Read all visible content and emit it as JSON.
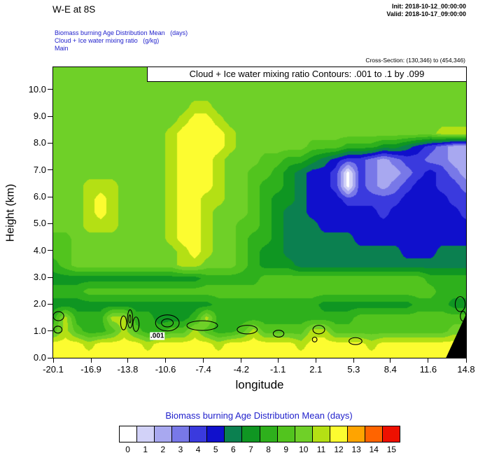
{
  "header": {
    "title": "W-E at 8S",
    "init_label": "Init: 2018-10-12_00:00:00",
    "valid_label": "Valid: 2018-10-17_09:00:00",
    "field_lines": [
      "Biomass burning Age Distribution Mean   (days)",
      "Cloud + Ice water mixing ratio   (g/kg)",
      "Main"
    ],
    "cross_section": "Cross-Section: (130,346) to (454,346)"
  },
  "plot": {
    "contour_title": "Cloud + Ice water mixing ratio Contours: .001 to .1 by .099",
    "xlabel": "longitude",
    "ylabel": "Height (km)",
    "x_ticks": [
      -20.1,
      -16.9,
      -13.8,
      -10.6,
      -7.4,
      -4.2,
      -1.1,
      2.1,
      5.3,
      8.4,
      11.6,
      14.8
    ],
    "y_ticks": [
      "0.0",
      "1.0",
      "2.0",
      "3.0",
      "4.0",
      "5.0",
      "6.0",
      "7.0",
      "8.0",
      "9.0",
      "10.0"
    ]
  },
  "colorbar": {
    "title": "Biomass burning Age Distribution Mean  (days)",
    "labels": [
      "0",
      "1",
      "2",
      "3",
      "4",
      "5",
      "6",
      "7",
      "8",
      "9",
      "10",
      "11",
      "12",
      "13",
      "14",
      "15"
    ],
    "colors": [
      "#ffffff",
      "#d2d2f8",
      "#a8a8f0",
      "#7878e8",
      "#3a3ade",
      "#1010cc",
      "#0b8050",
      "#0f9622",
      "#2eb01c",
      "#52c41e",
      "#6fd028",
      "#b4e014",
      "#fcfc30",
      "#ffa400",
      "#ff6400",
      "#ee1000"
    ]
  },
  "chart_data": {
    "type": "heatmap",
    "title": "Biomass burning Age Distribution Mean (days), W-E cross-section at 8S",
    "xlabel": "longitude",
    "ylabel": "Height (km)",
    "value_units": "days",
    "x_range": [
      -20.1,
      14.8
    ],
    "y_range": [
      0,
      10.83
    ],
    "x_ticks": [
      -20.1,
      -16.9,
      -13.8,
      -10.6,
      -7.4,
      -4.2,
      -1.1,
      2.1,
      5.3,
      8.4,
      11.6,
      14.8
    ],
    "y_ticks": [
      0,
      1,
      2,
      3,
      4,
      5,
      6,
      7,
      8,
      9,
      10
    ],
    "levels": [
      0,
      1,
      2,
      3,
      4,
      5,
      6,
      7,
      8,
      9,
      10,
      11,
      12,
      13,
      14,
      15
    ],
    "palette": [
      "#ffffff",
      "#d2d2f8",
      "#a8a8f0",
      "#7878e8",
      "#3a3ade",
      "#1010cc",
      "#0b8050",
      "#0f9622",
      "#2eb01c",
      "#52c41e",
      "#6fd028",
      "#b4e014",
      "#fcfc30",
      "#ffa400",
      "#ff6400",
      "#ee1000"
    ],
    "grid": {
      "note": "age in days; rows run top (10.83 km) to bottom (0 km), cols west (-20.1) to east (14.8)",
      "values": [
        [
          10,
          10,
          10,
          10,
          10,
          10,
          10,
          10,
          10,
          10,
          10,
          10,
          10,
          10,
          10,
          10,
          10,
          10,
          10,
          10,
          10,
          10,
          10,
          10,
          10,
          10,
          10,
          10,
          10,
          10,
          10,
          10,
          10,
          10,
          10,
          10
        ],
        [
          10,
          10,
          10,
          10,
          10,
          10,
          10,
          10,
          10,
          10,
          10,
          10,
          10,
          10,
          10,
          10,
          10,
          10,
          10,
          10,
          10,
          10,
          10,
          10,
          10,
          10,
          10,
          10,
          10,
          10,
          10,
          10,
          10,
          10,
          10,
          10
        ],
        [
          10,
          10,
          10,
          10,
          10,
          10,
          10,
          10,
          10,
          10,
          10,
          10,
          10,
          10,
          10,
          10,
          10,
          10,
          10,
          10,
          10,
          10,
          10,
          10,
          10,
          10,
          10,
          10,
          10,
          10,
          10,
          10,
          10,
          10,
          10,
          10
        ],
        [
          10,
          10,
          10,
          10,
          10,
          10,
          10,
          10,
          10,
          10,
          10,
          10,
          11,
          11,
          10,
          10,
          10,
          10,
          10,
          10,
          10,
          10,
          10,
          10,
          10,
          10,
          10,
          10,
          10,
          10,
          10,
          10,
          10,
          10,
          10,
          10
        ],
        [
          10,
          10,
          10,
          10,
          10,
          10,
          10,
          10,
          10,
          10,
          10,
          11,
          12,
          12,
          11,
          10,
          10,
          10,
          10,
          10,
          10,
          10,
          10,
          10,
          10,
          10,
          10,
          10,
          10,
          10,
          10,
          10,
          10,
          10,
          10,
          10
        ],
        [
          10,
          10,
          10,
          10,
          10,
          10,
          10,
          10,
          10,
          10,
          11,
          12,
          12,
          12,
          12,
          11,
          10,
          10,
          10,
          10,
          10,
          10,
          10,
          10,
          10,
          10,
          10,
          10,
          10,
          10,
          10,
          10,
          10,
          11,
          11,
          11
        ],
        [
          10,
          10,
          10,
          10,
          10,
          10,
          10,
          10,
          10,
          10,
          11,
          12,
          12,
          12,
          12,
          11,
          10,
          10,
          10,
          10,
          10,
          10,
          9,
          9,
          9,
          8,
          8,
          8,
          7,
          7,
          6,
          5,
          4,
          3,
          2,
          2
        ],
        [
          10,
          10,
          10,
          10,
          10,
          10,
          10,
          10,
          10,
          10,
          11,
          12,
          12,
          12,
          11,
          10,
          10,
          10,
          9,
          9,
          8,
          8,
          7,
          6,
          5,
          4,
          4,
          3,
          2,
          3,
          4,
          4,
          3,
          3,
          2,
          2
        ],
        [
          10,
          10,
          10,
          10,
          10,
          10,
          10,
          10,
          10,
          10,
          11,
          12,
          12,
          12,
          11,
          10,
          10,
          9,
          9,
          8,
          7,
          6,
          5,
          5,
          4,
          0,
          4,
          3,
          2,
          2,
          3,
          4,
          5,
          4,
          3,
          2
        ],
        [
          10,
          10,
          10,
          11,
          11,
          11,
          10,
          10,
          10,
          10,
          11,
          12,
          12,
          12,
          11,
          10,
          10,
          9,
          8,
          8,
          7,
          6,
          5,
          5,
          4,
          0,
          4,
          3,
          2,
          3,
          4,
          5,
          5,
          4,
          4,
          3
        ],
        [
          10,
          10,
          10,
          11,
          12,
          11,
          10,
          10,
          10,
          10,
          11,
          12,
          12,
          11,
          11,
          10,
          10,
          9,
          8,
          7,
          7,
          6,
          5,
          5,
          5,
          4,
          4,
          4,
          4,
          4,
          5,
          5,
          5,
          5,
          4,
          4
        ],
        [
          10,
          10,
          10,
          11,
          12,
          11,
          10,
          10,
          10,
          10,
          11,
          12,
          12,
          11,
          10,
          10,
          10,
          9,
          8,
          7,
          6,
          6,
          5,
          5,
          5,
          5,
          5,
          5,
          4,
          5,
          5,
          5,
          5,
          5,
          5,
          4
        ],
        [
          10,
          10,
          10,
          11,
          11,
          11,
          10,
          10,
          10,
          10,
          11,
          12,
          12,
          11,
          10,
          10,
          9,
          9,
          8,
          7,
          6,
          6,
          6,
          5,
          5,
          5,
          5,
          5,
          5,
          5,
          5,
          5,
          5,
          5,
          5,
          5
        ],
        [
          9,
          9,
          10,
          10,
          10,
          10,
          10,
          10,
          10,
          10,
          11,
          12,
          12,
          11,
          10,
          10,
          9,
          8,
          8,
          7,
          6,
          6,
          6,
          6,
          6,
          6,
          5,
          5,
          5,
          5,
          5,
          5,
          5,
          5,
          5,
          5
        ],
        [
          9,
          9,
          10,
          10,
          10,
          10,
          10,
          10,
          10,
          10,
          10,
          11,
          12,
          11,
          10,
          10,
          9,
          8,
          7,
          7,
          6,
          6,
          6,
          6,
          6,
          6,
          6,
          6,
          6,
          6,
          5,
          5,
          5,
          6,
          6,
          6
        ],
        [
          8,
          9,
          10,
          10,
          10,
          10,
          10,
          10,
          10,
          10,
          10,
          11,
          11,
          10,
          10,
          10,
          9,
          8,
          7,
          7,
          7,
          6,
          6,
          6,
          6,
          6,
          6,
          6,
          6,
          6,
          6,
          6,
          6,
          6,
          6,
          6
        ],
        [
          7,
          7,
          7,
          7,
          7,
          7,
          7,
          7,
          7,
          7,
          7,
          7,
          7,
          8,
          8,
          8,
          8,
          8,
          9,
          9,
          9,
          9,
          9,
          9,
          9,
          9,
          9,
          9,
          9,
          9,
          9,
          9,
          8,
          8,
          8,
          8
        ],
        [
          8,
          8,
          8,
          9,
          9,
          9,
          9,
          9,
          9,
          9,
          9,
          9,
          9,
          9,
          9,
          9,
          9,
          9,
          9,
          9,
          9,
          9,
          9,
          9,
          9,
          9,
          9,
          9,
          9,
          9,
          9,
          9,
          9,
          8,
          8,
          8
        ],
        [
          7,
          7,
          7,
          7,
          7,
          7,
          7,
          7,
          7,
          7,
          7,
          7,
          7,
          7,
          8,
          8,
          8,
          8,
          8,
          8,
          8,
          8,
          8,
          7,
          7,
          7,
          7,
          7,
          7,
          7,
          7,
          8,
          8,
          8,
          7,
          7
        ],
        [
          8,
          11,
          8,
          8,
          8,
          11,
          11,
          8,
          8,
          7,
          7,
          7,
          8,
          11,
          8,
          8,
          8,
          8,
          8,
          8,
          8,
          8,
          8,
          8,
          8,
          8,
          9,
          9,
          9,
          9,
          9,
          9,
          9,
          9,
          9,
          9
        ],
        [
          9,
          11,
          9,
          8,
          8,
          9,
          11,
          9,
          8,
          8,
          9,
          9,
          11,
          9,
          8,
          8,
          9,
          11,
          9,
          9,
          9,
          9,
          11,
          11,
          9,
          9,
          9,
          9,
          9,
          9,
          9,
          9,
          9,
          9,
          10,
          10
        ],
        [
          12,
          12,
          12,
          11,
          12,
          12,
          12,
          12,
          11,
          12,
          12,
          12,
          12,
          12,
          11,
          12,
          12,
          12,
          12,
          12,
          12,
          11,
          12,
          12,
          12,
          12,
          12,
          11,
          12,
          12,
          12,
          12,
          12,
          12,
          12,
          12
        ],
        [
          12,
          12,
          12,
          12,
          12,
          12,
          12,
          12,
          12,
          12,
          12,
          12,
          12,
          12,
          12,
          12,
          12,
          12,
          12,
          12,
          12,
          12,
          12,
          12,
          12,
          12,
          12,
          12,
          12,
          12,
          12,
          12,
          12,
          12,
          12,
          12
        ]
      ]
    },
    "cloud_contours": {
      "field": "Cloud + Ice water mixing ratio (g/kg)",
      "levels_info": ".001 to .1 by .099",
      "label": ".001",
      "label_pos": {
        "lon": -11.3,
        "km": 0.82
      },
      "blobs": [
        {
          "lon": -19.65,
          "km": 1.55,
          "rlon": 0.45,
          "rkm": 0.17
        },
        {
          "lon": -19.7,
          "km": 1.05,
          "rlon": 0.35,
          "rkm": 0.13
        },
        {
          "lon": -14.15,
          "km": 1.3,
          "rlon": 0.25,
          "rkm": 0.26
        },
        {
          "lon": -13.6,
          "km": 1.45,
          "rlon": 0.22,
          "rkm": 0.34
        },
        {
          "lon": -13.1,
          "km": 1.25,
          "rlon": 0.26,
          "rkm": 0.27
        },
        {
          "lon": -13.62,
          "km": 1.45,
          "rlon": 0.09,
          "rkm": 0.15
        },
        {
          "lon": -10.45,
          "km": 1.3,
          "rlon": 1.0,
          "rkm": 0.3
        },
        {
          "lon": -10.45,
          "km": 1.3,
          "rlon": 0.5,
          "rkm": 0.15
        },
        {
          "lon": -7.5,
          "km": 1.2,
          "rlon": 1.3,
          "rkm": 0.18
        },
        {
          "lon": -3.7,
          "km": 1.05,
          "rlon": 0.85,
          "rkm": 0.16
        },
        {
          "lon": -1.05,
          "km": 0.9,
          "rlon": 0.45,
          "rkm": 0.13
        },
        {
          "lon": 2.35,
          "km": 1.05,
          "rlon": 0.5,
          "rkm": 0.16
        },
        {
          "lon": 2.0,
          "km": 0.68,
          "rlon": 0.2,
          "rkm": 0.09
        },
        {
          "lon": 5.45,
          "km": 0.62,
          "rlon": 0.55,
          "rkm": 0.13
        },
        {
          "lon": 14.3,
          "km": 2.0,
          "rlon": 0.42,
          "rkm": 0.28
        },
        {
          "lon": 14.55,
          "km": 1.55,
          "rlon": 0.24,
          "rkm": 0.18
        }
      ]
    },
    "terrain": [
      [
        13.1,
        0
      ],
      [
        14.8,
        0
      ],
      [
        14.8,
        1.62
      ]
    ]
  }
}
